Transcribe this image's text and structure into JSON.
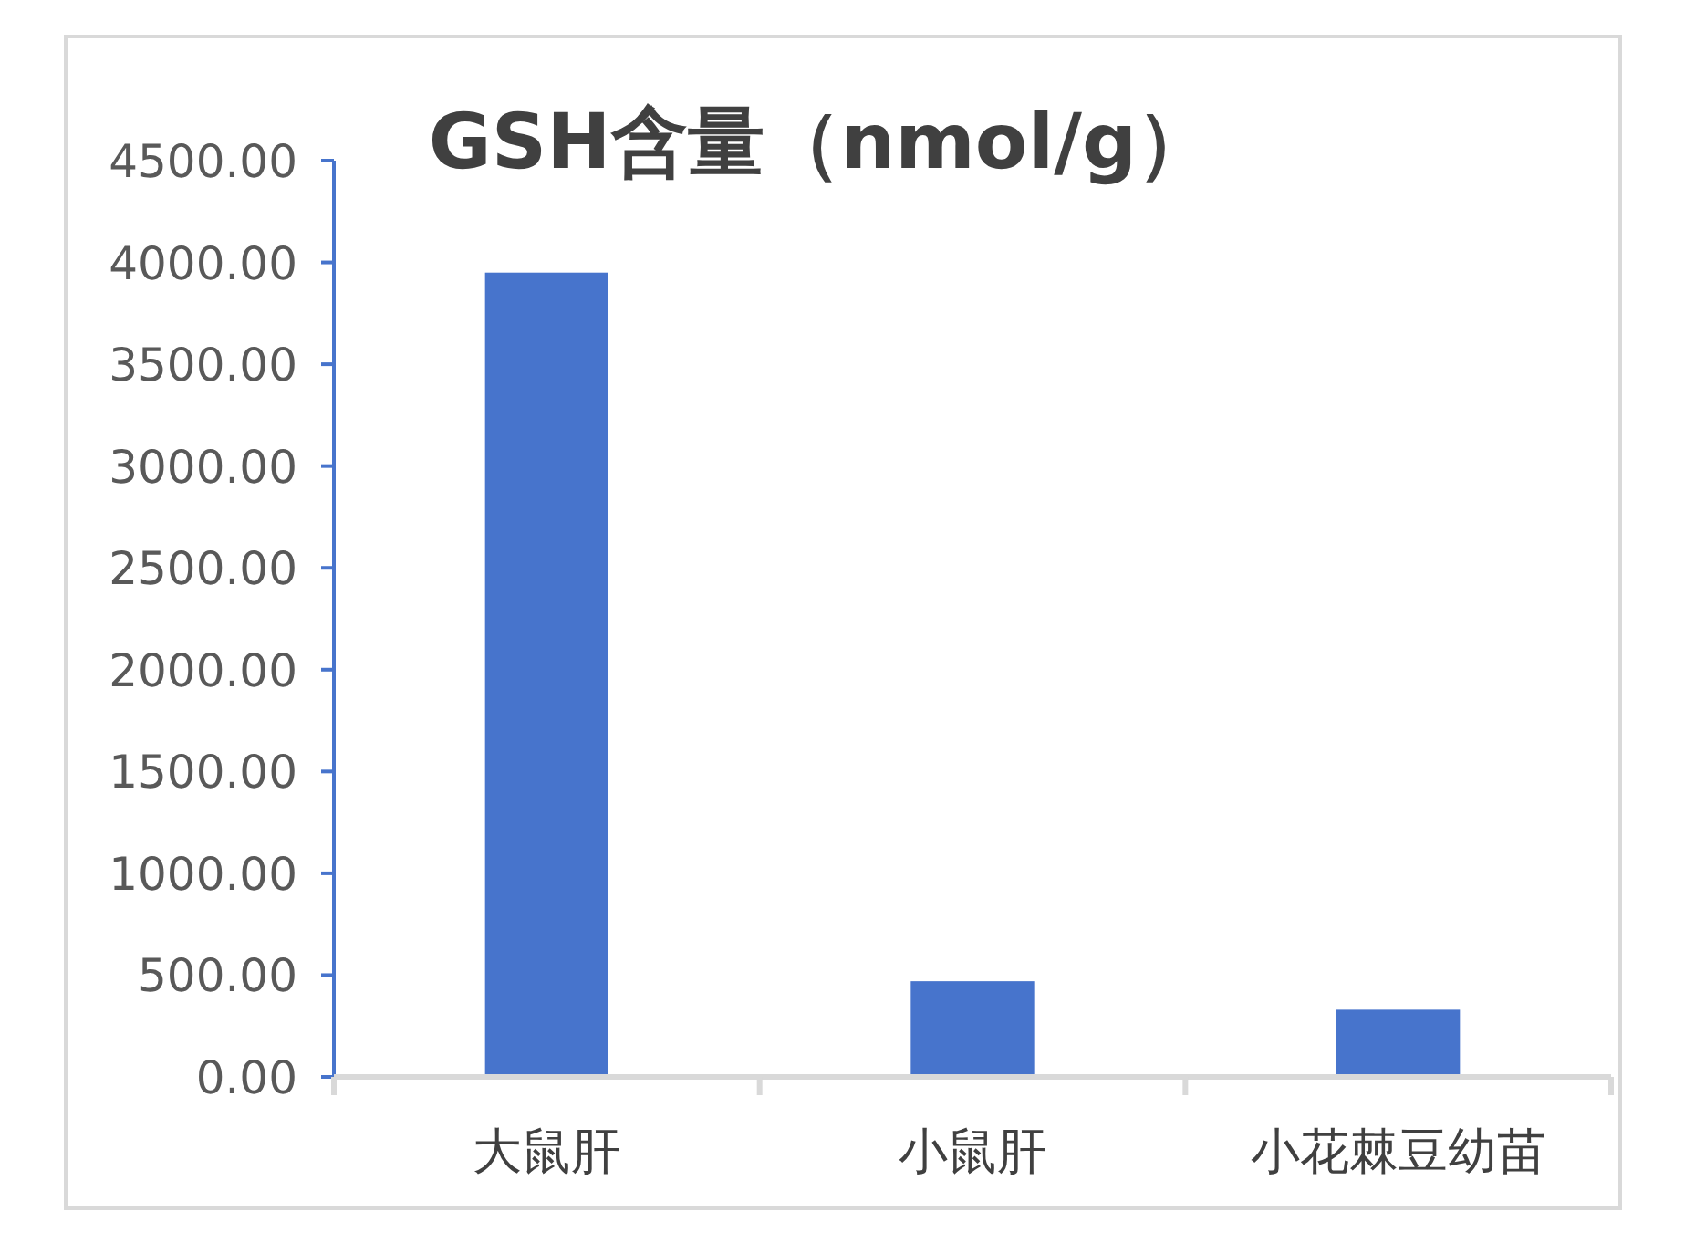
{
  "chart_data": {
    "type": "bar",
    "title": "GSH含量（nmol/g）",
    "categories": [
      "大鼠肝",
      "小鼠肝",
      "小花棘豆幼苗"
    ],
    "values": [
      3950,
      470,
      330
    ],
    "color": "#4774cc",
    "ylim": [
      0,
      4500
    ],
    "yticks": [
      {
        "value": 0,
        "label": "0.00"
      },
      {
        "value": 500,
        "label": "500.00"
      },
      {
        "value": 1000,
        "label": "1000.00"
      },
      {
        "value": 1500,
        "label": "1500.00"
      },
      {
        "value": 2000,
        "label": "2000.00"
      },
      {
        "value": 2500,
        "label": "2500.00"
      },
      {
        "value": 3000,
        "label": "3000.00"
      },
      {
        "value": 3500,
        "label": "3500.00"
      },
      {
        "value": 4000,
        "label": "4000.00"
      },
      {
        "value": 4500,
        "label": "4500.00"
      }
    ],
    "grid": false
  }
}
